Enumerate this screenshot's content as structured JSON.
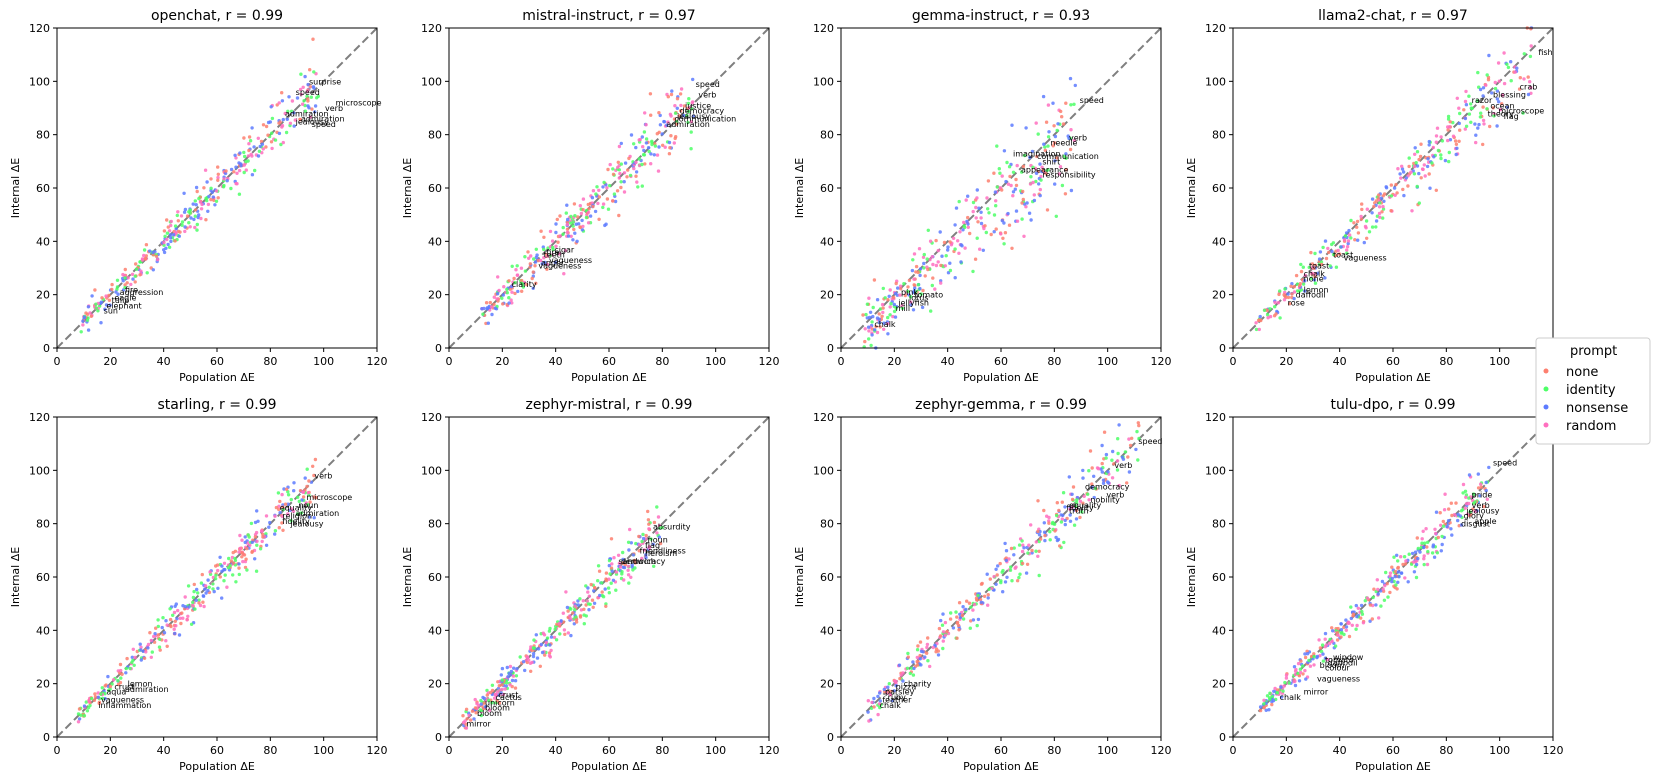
{
  "legend": {
    "title": "prompt",
    "entries": [
      {
        "label": "none",
        "color": "#fd7f6f"
      },
      {
        "label": "identity",
        "color": "#4dff67"
      },
      {
        "label": "nonsense",
        "color": "#5d7bff"
      },
      {
        "label": "random",
        "color": "#ff6fbf"
      }
    ]
  },
  "chart_data": [
    {
      "type": "scatter",
      "title": "openchat, r = 0.99",
      "xlabel": "Population ΔE",
      "ylabel": "Internal ΔE",
      "xlim": [
        0,
        120
      ],
      "ylim": [
        0,
        120
      ],
      "ticks": [
        0,
        20,
        40,
        60,
        80,
        100,
        120
      ],
      "slope": 1.0,
      "spread": 3.5,
      "xrange": [
        8,
        98
      ],
      "seed": 11,
      "annotations": [
        {
          "text": "surprise",
          "x": 93,
          "y": 100
        },
        {
          "text": "speed",
          "x": 88,
          "y": 96
        },
        {
          "text": "microscope",
          "x": 103,
          "y": 92
        },
        {
          "text": "verb",
          "x": 99,
          "y": 90
        },
        {
          "text": "admiration",
          "x": 84,
          "y": 88
        },
        {
          "text": "admiration",
          "x": 90,
          "y": 86
        },
        {
          "text": "jealousy",
          "x": 88,
          "y": 85
        },
        {
          "text": "speed",
          "x": 94,
          "y": 84
        },
        {
          "text": "aggression",
          "x": 22,
          "y": 21
        },
        {
          "text": "fire",
          "x": 24,
          "y": 22
        },
        {
          "text": "eagle",
          "x": 20,
          "y": 19
        },
        {
          "text": "tulip",
          "x": 19,
          "y": 18
        },
        {
          "text": "elephant",
          "x": 17,
          "y": 16
        },
        {
          "text": "sun",
          "x": 16,
          "y": 14
        }
      ]
    },
    {
      "type": "scatter",
      "title": "mistral-instruct, r = 0.97",
      "xlabel": "Population ΔE",
      "ylabel": "Internal ΔE",
      "xlim": [
        0,
        120
      ],
      "ylim": [
        0,
        120
      ],
      "ticks": [
        0,
        20,
        40,
        60,
        80,
        100,
        120
      ],
      "slope": 1.0,
      "spread": 4.5,
      "xrange": [
        12,
        92
      ],
      "seed": 23,
      "annotations": [
        {
          "text": "speed",
          "x": 91,
          "y": 99
        },
        {
          "text": "verb",
          "x": 92,
          "y": 95
        },
        {
          "text": "justice",
          "x": 87,
          "y": 91
        },
        {
          "text": "democracy",
          "x": 85,
          "y": 89
        },
        {
          "text": "jealousy",
          "x": 84,
          "y": 87
        },
        {
          "text": "communication",
          "x": 83,
          "y": 86
        },
        {
          "text": "admiration",
          "x": 80,
          "y": 84
        },
        {
          "text": "cigar",
          "x": 38,
          "y": 37
        },
        {
          "text": "fire",
          "x": 35,
          "y": 36
        },
        {
          "text": "teeth",
          "x": 34,
          "y": 35
        },
        {
          "text": "vagueness",
          "x": 36,
          "y": 33
        },
        {
          "text": "anger",
          "x": 33,
          "y": 32
        },
        {
          "text": "vagueness",
          "x": 32,
          "y": 31
        },
        {
          "text": "clarity",
          "x": 22,
          "y": 24
        }
      ]
    },
    {
      "type": "scatter",
      "title": "gemma-instruct, r = 0.93",
      "xlabel": "Population ΔE",
      "ylabel": "Internal ΔE",
      "xlim": [
        0,
        120
      ],
      "ylim": [
        0,
        120
      ],
      "ticks": [
        0,
        20,
        40,
        60,
        80,
        100,
        120
      ],
      "slope": 0.9,
      "spread": 8,
      "xrange": [
        8,
        88
      ],
      "seed": 37,
      "annotations": [
        {
          "text": "speed",
          "x": 88,
          "y": 93
        },
        {
          "text": "verb",
          "x": 84,
          "y": 79
        },
        {
          "text": "needle",
          "x": 77,
          "y": 77
        },
        {
          "text": "imagination",
          "x": 63,
          "y": 73
        },
        {
          "text": "communication",
          "x": 72,
          "y": 72
        },
        {
          "text": "shirt",
          "x": 74,
          "y": 70
        },
        {
          "text": "appearance",
          "x": 66,
          "y": 67
        },
        {
          "text": "responsibility",
          "x": 74,
          "y": 65
        },
        {
          "text": "tomato",
          "x": 26,
          "y": 20
        },
        {
          "text": "pink",
          "x": 21,
          "y": 21
        },
        {
          "text": "lotus",
          "x": 24,
          "y": 19
        },
        {
          "text": "jellyfish",
          "x": 20,
          "y": 17
        },
        {
          "text": "mill",
          "x": 19,
          "y": 15
        },
        {
          "text": "chalk",
          "x": 11,
          "y": 9
        }
      ]
    },
    {
      "type": "scatter",
      "title": "llama2-chat, r = 0.97",
      "xlabel": "Population ΔE",
      "ylabel": "Internal ΔE",
      "xlim": [
        0,
        120
      ],
      "ylim": [
        0,
        120
      ],
      "ticks": [
        0,
        20,
        40,
        60,
        80,
        100,
        120
      ],
      "slope": 0.97,
      "spread": 4.5,
      "xrange": [
        8,
        112
      ],
      "seed": 53,
      "annotations": [
        {
          "text": "fish",
          "x": 113,
          "y": 111
        },
        {
          "text": "crab",
          "x": 106,
          "y": 98
        },
        {
          "text": "blessing",
          "x": 96,
          "y": 95
        },
        {
          "text": "razor",
          "x": 88,
          "y": 93
        },
        {
          "text": "ocean",
          "x": 95,
          "y": 91
        },
        {
          "text": "microscope",
          "x": 98,
          "y": 89
        },
        {
          "text": "theory",
          "x": 94,
          "y": 88
        },
        {
          "text": "flag",
          "x": 100,
          "y": 87
        },
        {
          "text": "vagueness",
          "x": 40,
          "y": 34
        },
        {
          "text": "toast",
          "x": 36,
          "y": 35
        },
        {
          "text": "toast",
          "x": 27,
          "y": 31
        },
        {
          "text": "chalk",
          "x": 25,
          "y": 28
        },
        {
          "text": "none",
          "x": 25,
          "y": 26
        },
        {
          "text": "lemon",
          "x": 25,
          "y": 22
        },
        {
          "text": "daffodil",
          "x": 22,
          "y": 20
        },
        {
          "text": "rose",
          "x": 19,
          "y": 17
        }
      ]
    },
    {
      "type": "scatter",
      "title": "starling, r = 0.99",
      "xlabel": "Population ΔE",
      "ylabel": "Internal ΔE",
      "xlim": [
        0,
        120
      ],
      "ylim": [
        0,
        120
      ],
      "ticks": [
        0,
        20,
        40,
        60,
        80,
        100,
        120
      ],
      "slope": 0.99,
      "spread": 3,
      "xrange": [
        8,
        98
      ],
      "seed": 71,
      "annotations": [
        {
          "text": "verb",
          "x": 95,
          "y": 98
        },
        {
          "text": "microscope",
          "x": 92,
          "y": 90
        },
        {
          "text": "noun",
          "x": 89,
          "y": 87
        },
        {
          "text": "equality",
          "x": 82,
          "y": 86
        },
        {
          "text": "admiration",
          "x": 88,
          "y": 84
        },
        {
          "text": "religion",
          "x": 83,
          "y": 83
        },
        {
          "text": "fidelity",
          "x": 83,
          "y": 81
        },
        {
          "text": "jealousy",
          "x": 86,
          "y": 80
        },
        {
          "text": "lemon",
          "x": 25,
          "y": 20
        },
        {
          "text": "crust",
          "x": 20,
          "y": 19
        },
        {
          "text": "admiration",
          "x": 24,
          "y": 18
        },
        {
          "text": "aqua",
          "x": 17,
          "y": 17
        },
        {
          "text": "vagueness",
          "x": 15,
          "y": 14
        },
        {
          "text": "inflammation",
          "x": 14,
          "y": 12
        }
      ]
    },
    {
      "type": "scatter",
      "title": "zephyr-mistral, r = 0.99",
      "xlabel": "Population ΔE",
      "ylabel": "Internal ΔE",
      "xlim": [
        0,
        120
      ],
      "ylim": [
        0,
        120
      ],
      "ticks": [
        0,
        20,
        40,
        60,
        80,
        100,
        120
      ],
      "slope": 0.98,
      "spread": 3.5,
      "xrange": [
        5,
        80
      ],
      "seed": 89,
      "annotations": [
        {
          "text": "absurdity",
          "x": 75,
          "y": 79
        },
        {
          "text": "noun",
          "x": 73,
          "y": 74
        },
        {
          "text": "flag",
          "x": 72,
          "y": 72
        },
        {
          "text": "friendliness",
          "x": 70,
          "y": 70
        },
        {
          "text": "heroism",
          "x": 72,
          "y": 69
        },
        {
          "text": "sandwich",
          "x": 62,
          "y": 66
        },
        {
          "text": "democracy",
          "x": 63,
          "y": 66
        },
        {
          "text": "crust",
          "x": 17,
          "y": 16
        },
        {
          "text": "cactus",
          "x": 16,
          "y": 15
        },
        {
          "text": "unicorn",
          "x": 12,
          "y": 13
        },
        {
          "text": "bloom",
          "x": 12,
          "y": 11
        },
        {
          "text": "bloom",
          "x": 9,
          "y": 9
        },
        {
          "text": "mirror",
          "x": 5,
          "y": 5
        }
      ]
    },
    {
      "type": "scatter",
      "title": "zephyr-gemma, r = 0.99",
      "xlabel": "Population ΔE",
      "ylabel": "Internal ΔE",
      "xlim": [
        0,
        120
      ],
      "ylim": [
        0,
        120
      ],
      "ticks": [
        0,
        20,
        40,
        60,
        80,
        100,
        120
      ],
      "slope": 1.0,
      "spread": 3.5,
      "xrange": [
        10,
        112
      ],
      "seed": 101,
      "annotations": [
        {
          "text": "speed",
          "x": 110,
          "y": 111
        },
        {
          "text": "verb",
          "x": 101,
          "y": 102
        },
        {
          "text": "democracy",
          "x": 90,
          "y": 94
        },
        {
          "text": "verb",
          "x": 98,
          "y": 91
        },
        {
          "text": "nobility",
          "x": 92,
          "y": 89
        },
        {
          "text": "equality",
          "x": 84,
          "y": 87
        },
        {
          "text": "fidelity",
          "x": 83,
          "y": 86
        },
        {
          "text": "truth",
          "x": 84,
          "y": 85
        },
        {
          "text": "charity",
          "x": 22,
          "y": 20
        },
        {
          "text": "pizza",
          "x": 19,
          "y": 19
        },
        {
          "text": "parsley",
          "x": 15,
          "y": 17
        },
        {
          "text": "ruby",
          "x": 16,
          "y": 15
        },
        {
          "text": "feather",
          "x": 14,
          "y": 14
        },
        {
          "text": "chalk",
          "x": 13,
          "y": 12
        }
      ]
    },
    {
      "type": "scatter",
      "title": "tulu-dpo, r = 0.99",
      "xlabel": "Population ΔE",
      "ylabel": "Internal ΔE",
      "xlim": [
        0,
        120
      ],
      "ylim": [
        0,
        120
      ],
      "ticks": [
        0,
        20,
        40,
        60,
        80,
        100,
        120
      ],
      "slope": 0.99,
      "spread": 3,
      "xrange": [
        10,
        96
      ],
      "seed": 131,
      "annotations": [
        {
          "text": "speed",
          "x": 96,
          "y": 103
        },
        {
          "text": "pride",
          "x": 88,
          "y": 91
        },
        {
          "text": "verb",
          "x": 88,
          "y": 87
        },
        {
          "text": "jealousy",
          "x": 86,
          "y": 85
        },
        {
          "text": "glory",
          "x": 85,
          "y": 83
        },
        {
          "text": "apple",
          "x": 89,
          "y": 81
        },
        {
          "text": "disgust",
          "x": 84,
          "y": 80
        },
        {
          "text": "window",
          "x": 36,
          "y": 30
        },
        {
          "text": "tomato",
          "x": 33,
          "y": 29
        },
        {
          "text": "daffodil",
          "x": 34,
          "y": 28
        },
        {
          "text": "bloom",
          "x": 31,
          "y": 27
        },
        {
          "text": "colour",
          "x": 33,
          "y": 26
        },
        {
          "text": "vagueness",
          "x": 30,
          "y": 22
        },
        {
          "text": "mirror",
          "x": 25,
          "y": 17
        },
        {
          "text": "chalk",
          "x": 16,
          "y": 15
        }
      ]
    }
  ]
}
